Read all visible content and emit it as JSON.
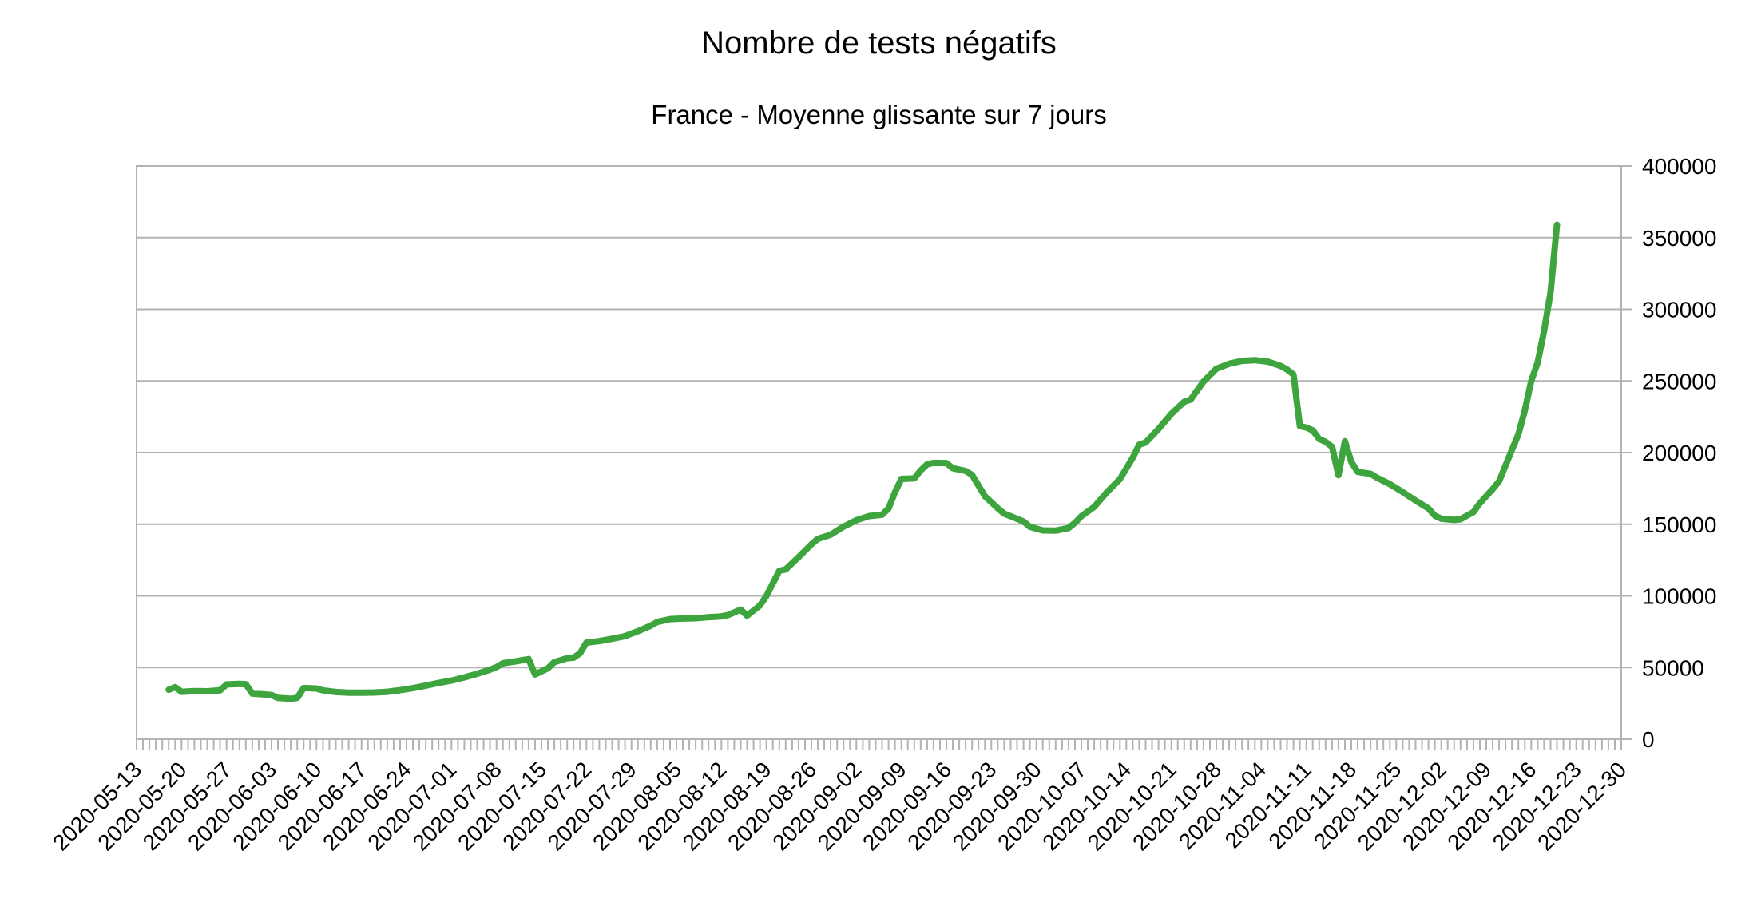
{
  "chart_data": {
    "type": "line",
    "title": "Nombre de tests négatifs",
    "subtitle": "France - Moyenne glissante sur 7 jours",
    "legend": "none",
    "grid": "horizontal",
    "y_axis_side": "right",
    "ylim": [
      0,
      400000
    ],
    "y_tick_step": 50000,
    "y_tick_labels": [
      "0",
      "50000",
      "100000",
      "150000",
      "200000",
      "250000",
      "300000",
      "350000",
      "400000"
    ],
    "x_range": [
      "2020-05-13",
      "2020-12-30"
    ],
    "x_minor_tick_interval_days": 1,
    "x_label_interval_days": 7,
    "x_tick_labels": [
      "2020-05-13",
      "2020-05-20",
      "2020-05-27",
      "2020-06-03",
      "2020-06-10",
      "2020-06-17",
      "2020-06-24",
      "2020-07-01",
      "2020-07-08",
      "2020-07-15",
      "2020-07-22",
      "2020-07-29",
      "2020-08-05",
      "2020-08-12",
      "2020-08-19",
      "2020-08-26",
      "2020-09-02",
      "2020-09-09",
      "2020-09-16",
      "2020-09-23",
      "2020-09-30",
      "2020-10-07",
      "2020-10-14",
      "2020-10-21",
      "2020-10-28",
      "2020-11-04",
      "2020-11-11",
      "2020-11-18",
      "2020-11-25",
      "2020-12-02",
      "2020-12-09",
      "2020-12-16",
      "2020-12-23",
      "2020-12-30"
    ],
    "colors": {
      "line": "#3EA43E",
      "grid": "#B3B3B3",
      "axis": "#B3B3B3",
      "text": "#000000"
    },
    "series": [
      {
        "name": "Nombre de tests négatifs",
        "points": [
          [
            "2020-05-18",
            34500
          ],
          [
            "2020-05-19",
            36300
          ],
          [
            "2020-05-20",
            33100
          ],
          [
            "2020-05-22",
            33600
          ],
          [
            "2020-05-24",
            33400
          ],
          [
            "2020-05-26",
            34100
          ],
          [
            "2020-05-27",
            38200
          ],
          [
            "2020-05-29",
            38600
          ],
          [
            "2020-05-30",
            38400
          ],
          [
            "2020-05-31",
            31800
          ],
          [
            "2020-06-02",
            31200
          ],
          [
            "2020-06-03",
            30800
          ],
          [
            "2020-06-04",
            28800
          ],
          [
            "2020-06-06",
            28200
          ],
          [
            "2020-06-07",
            28800
          ],
          [
            "2020-06-08",
            35700
          ],
          [
            "2020-06-10",
            35400
          ],
          [
            "2020-06-11",
            34100
          ],
          [
            "2020-06-13",
            32900
          ],
          [
            "2020-06-15",
            32500
          ],
          [
            "2020-06-17",
            32400
          ],
          [
            "2020-06-19",
            32600
          ],
          [
            "2020-06-21",
            33100
          ],
          [
            "2020-06-23",
            34200
          ],
          [
            "2020-06-25",
            35600
          ],
          [
            "2020-06-27",
            37400
          ],
          [
            "2020-06-29",
            39300
          ],
          [
            "2020-07-01",
            40900
          ],
          [
            "2020-07-03",
            43100
          ],
          [
            "2020-07-05",
            45600
          ],
          [
            "2020-07-07",
            48500
          ],
          [
            "2020-07-08",
            50300
          ],
          [
            "2020-07-09",
            53000
          ],
          [
            "2020-07-11",
            54300
          ],
          [
            "2020-07-13",
            55900
          ],
          [
            "2020-07-14",
            45200
          ],
          [
            "2020-07-16",
            49400
          ],
          [
            "2020-07-17",
            53800
          ],
          [
            "2020-07-19",
            56500
          ],
          [
            "2020-07-20",
            56900
          ],
          [
            "2020-07-21",
            60000
          ],
          [
            "2020-07-22",
            67400
          ],
          [
            "2020-07-24",
            68400
          ],
          [
            "2020-07-26",
            70100
          ],
          [
            "2020-07-28",
            71900
          ],
          [
            "2020-07-30",
            75300
          ],
          [
            "2020-08-01",
            79200
          ],
          [
            "2020-08-02",
            81800
          ],
          [
            "2020-08-04",
            83800
          ],
          [
            "2020-08-06",
            84200
          ],
          [
            "2020-08-08",
            84400
          ],
          [
            "2020-08-10",
            85100
          ],
          [
            "2020-08-12",
            85700
          ],
          [
            "2020-08-13",
            86600
          ],
          [
            "2020-08-15",
            90400
          ],
          [
            "2020-08-16",
            86200
          ],
          [
            "2020-08-18",
            93300
          ],
          [
            "2020-08-19",
            100000
          ],
          [
            "2020-08-21",
            117500
          ],
          [
            "2020-08-22",
            118500
          ],
          [
            "2020-08-24",
            127000
          ],
          [
            "2020-08-26",
            136000
          ],
          [
            "2020-08-27",
            139800
          ],
          [
            "2020-08-29",
            142700
          ],
          [
            "2020-08-31",
            148300
          ],
          [
            "2020-09-02",
            152800
          ],
          [
            "2020-09-04",
            155700
          ],
          [
            "2020-09-06",
            156600
          ],
          [
            "2020-09-07",
            161000
          ],
          [
            "2020-09-08",
            172300
          ],
          [
            "2020-09-09",
            181600
          ],
          [
            "2020-09-11",
            182000
          ],
          [
            "2020-09-12",
            187500
          ],
          [
            "2020-09-13",
            191800
          ],
          [
            "2020-09-14",
            192800
          ],
          [
            "2020-09-16",
            192700
          ],
          [
            "2020-09-17",
            189100
          ],
          [
            "2020-09-19",
            187200
          ],
          [
            "2020-09-20",
            184400
          ],
          [
            "2020-09-21",
            177000
          ],
          [
            "2020-09-22",
            169500
          ],
          [
            "2020-09-24",
            161100
          ],
          [
            "2020-09-25",
            157400
          ],
          [
            "2020-09-26",
            155600
          ],
          [
            "2020-09-28",
            151900
          ],
          [
            "2020-09-29",
            148200
          ],
          [
            "2020-10-01",
            145700
          ],
          [
            "2020-10-03",
            145500
          ],
          [
            "2020-10-05",
            147300
          ],
          [
            "2020-10-06",
            151000
          ],
          [
            "2020-10-07",
            155600
          ],
          [
            "2020-10-09",
            162100
          ],
          [
            "2020-10-11",
            172500
          ],
          [
            "2020-10-13",
            181500
          ],
          [
            "2020-10-15",
            196500
          ],
          [
            "2020-10-16",
            205500
          ],
          [
            "2020-10-17",
            207000
          ],
          [
            "2020-10-19",
            216500
          ],
          [
            "2020-10-21",
            227000
          ],
          [
            "2020-10-23",
            235500
          ],
          [
            "2020-10-24",
            237000
          ],
          [
            "2020-10-26",
            249500
          ],
          [
            "2020-10-28",
            258500
          ],
          [
            "2020-10-30",
            262000
          ],
          [
            "2020-11-01",
            264000
          ],
          [
            "2020-11-03",
            264500
          ],
          [
            "2020-11-05",
            263500
          ],
          [
            "2020-11-07",
            260500
          ],
          [
            "2020-11-08",
            258000
          ],
          [
            "2020-11-09",
            254500
          ],
          [
            "2020-11-10",
            218500
          ],
          [
            "2020-11-11",
            217500
          ],
          [
            "2020-11-12",
            215500
          ],
          [
            "2020-11-13",
            209500
          ],
          [
            "2020-11-14",
            207500
          ],
          [
            "2020-11-15",
            204000
          ],
          [
            "2020-11-16",
            184300
          ],
          [
            "2020-11-17",
            207900
          ],
          [
            "2020-11-18",
            193500
          ],
          [
            "2020-11-19",
            186500
          ],
          [
            "2020-11-21",
            185200
          ],
          [
            "2020-11-22",
            182500
          ],
          [
            "2020-11-24",
            178000
          ],
          [
            "2020-11-26",
            172500
          ],
          [
            "2020-11-28",
            166500
          ],
          [
            "2020-11-30",
            161000
          ],
          [
            "2020-12-01",
            156000
          ],
          [
            "2020-12-02",
            153800
          ],
          [
            "2020-12-04",
            153000
          ],
          [
            "2020-12-05",
            153500
          ],
          [
            "2020-12-07",
            158500
          ],
          [
            "2020-12-08",
            164700
          ],
          [
            "2020-12-10",
            174500
          ],
          [
            "2020-12-11",
            180000
          ],
          [
            "2020-12-12",
            191000
          ],
          [
            "2020-12-13",
            202000
          ],
          [
            "2020-12-14",
            212700
          ],
          [
            "2020-12-15",
            229400
          ],
          [
            "2020-12-16",
            250000
          ],
          [
            "2020-12-17",
            263000
          ],
          [
            "2020-12-18",
            285000
          ],
          [
            "2020-12-19",
            312000
          ],
          [
            "2020-12-20",
            359000
          ]
        ]
      }
    ]
  }
}
